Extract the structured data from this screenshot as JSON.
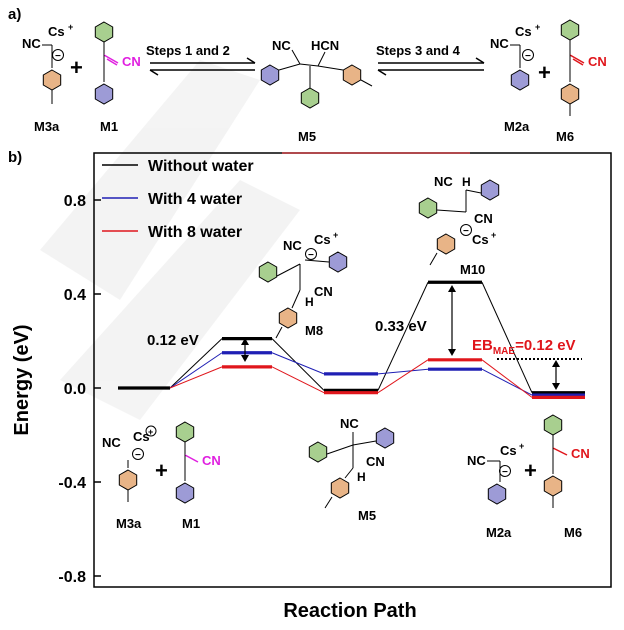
{
  "panel_a": {
    "label": "a)",
    "step12": "Steps 1 and 2",
    "step34": "Steps 3 and 4",
    "plus": "+",
    "species": {
      "m3a": {
        "name": "M3a",
        "nc": "NC",
        "cs": "Cs",
        "plus": "+",
        "anion": "−"
      },
      "m1": {
        "name": "M1",
        "cn": "CN"
      },
      "m5": {
        "name": "M5",
        "nc": "NC",
        "hcn": "HCN"
      },
      "m2a": {
        "name": "M2a",
        "nc": "NC",
        "cs": "Cs",
        "plus": "+",
        "anion": "−"
      },
      "m6": {
        "name": "M6",
        "cn": "CN"
      }
    }
  },
  "panel_b": {
    "label": "b)",
    "y_axis_label": "Energy (eV)",
    "x_axis_label": "Reaction Path",
    "ticks": [
      "0.8",
      "0.4",
      "0.0",
      "-0.4",
      "-0.8"
    ],
    "annotations": {
      "delta1": "0.12 eV",
      "delta2": "0.33 eV",
      "eb_main": "EB",
      "eb_sub": "MAE",
      "eb_value": "=0.12 eV"
    },
    "species": {
      "m8": {
        "name": "M8",
        "nc": "NC",
        "cs": "Cs",
        "plus": "+",
        "cn": "CN",
        "h": "H",
        "anion": "−"
      },
      "m10": {
        "name": "M10",
        "nc": "NC",
        "h": "H",
        "cn": "CN",
        "cs": "Cs",
        "plus": "+",
        "anion": "−"
      },
      "m3a": {
        "name": "M3a",
        "nc": "NC",
        "cs": "Cs",
        "plus": "+",
        "anion": "−"
      },
      "m1": {
        "name": "M1",
        "cn": "CN"
      },
      "m5": {
        "name": "M5",
        "nc": "NC",
        "cn": "CN",
        "h": "H"
      },
      "m2a": {
        "name": "M2a",
        "nc": "NC",
        "cs": "Cs",
        "plus": "+",
        "anion": "−"
      },
      "m6": {
        "name": "M6",
        "cn": "CN"
      }
    }
  },
  "colors": {
    "without_water": "#000000",
    "with_4_water": "#1f1fb4",
    "with_8_water": "#e0161c",
    "benzyl_ring": "#9d9bd6",
    "tolyl_ring": "#e8b487",
    "phenyl_ring": "#a8cf8f",
    "highlight_magenta": "#e020e0",
    "highlight_red": "#e0161c"
  },
  "chart_data": {
    "type": "energy_profile",
    "ylabel": "Energy (eV)",
    "xlabel": "Reaction Path",
    "ylim": [
      -0.8,
      0.8
    ],
    "yticks": [
      0.8,
      0.4,
      0.0,
      -0.4,
      -0.8
    ],
    "legend_position": "top-left",
    "series": [
      {
        "name": "Without water",
        "color": "#000000",
        "values": [
          0.0,
          0.21,
          -0.01,
          0.45,
          -0.02
        ]
      },
      {
        "name": "With 4 water",
        "color": "#1f1fb4",
        "values": [
          0.0,
          0.15,
          0.06,
          0.08,
          -0.03
        ]
      },
      {
        "name": "With 8 water",
        "color": "#e0161c",
        "values": [
          0.0,
          0.09,
          -0.02,
          0.12,
          -0.04
        ]
      }
    ],
    "annotations": [
      {
        "text": "0.12 eV"
      },
      {
        "text": "0.33 eV"
      },
      {
        "text": "EBMAE=0.12 eV"
      }
    ]
  }
}
